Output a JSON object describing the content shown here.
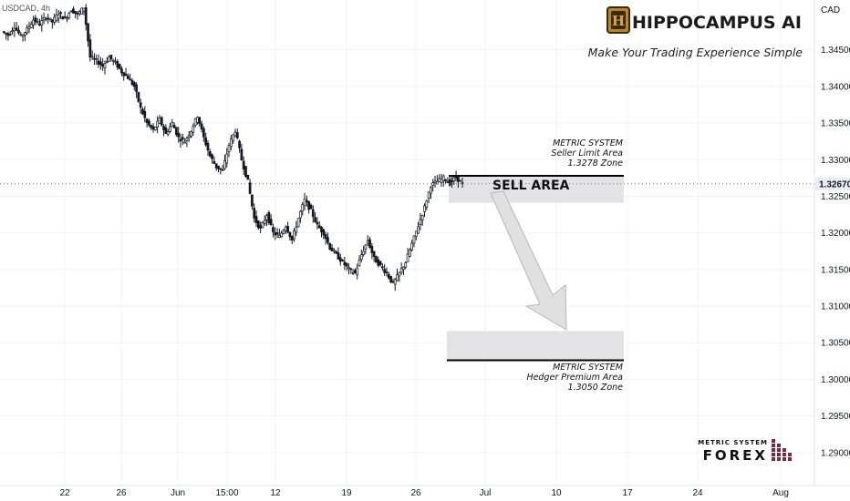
{
  "header": {
    "symbol_text": "USDCAD, 4h",
    "currency": "CAD"
  },
  "brand": {
    "name": "HIPPOCAMPUS AI",
    "logo_letter": "H",
    "tagline": "Make Your Trading Experience Simple"
  },
  "annotations": {
    "seller_lines": [
      "METRIC SYSTEM",
      "Seller Limit Area",
      "1.3278 Zone"
    ],
    "sell_label": "SELL AREA",
    "hedger_lines": [
      "METRIC SYSTEM",
      "Hedger Premium Area",
      "1.3050 Zone"
    ]
  },
  "watermark": {
    "line1": "METRIC SYSTEM",
    "line2": "FOREX"
  },
  "current_price": {
    "label": "1.32670",
    "value": 1.3267
  },
  "colors": {
    "candle": "#131722",
    "zone_fill": "#e3e3e5",
    "zone_line": "#000000",
    "arrow_fill": "#e0e0e0",
    "arrow_stroke": "#b8b8b8",
    "grid": "#f0f3fa",
    "logo_gold": "#b8862b",
    "logo_dark": "#3a2a12",
    "watermark_red": "#7d2a3a"
  },
  "chart_data": {
    "type": "candlestick",
    "symbol": "USDCAD",
    "timeframe": "4h",
    "y_axis": {
      "ticks": [
        "1.34500",
        "1.34000",
        "1.33500",
        "1.33000",
        "1.32500",
        "1.32000",
        "1.31500",
        "1.31000",
        "1.30500",
        "1.30000",
        "1.29500",
        "1.29000"
      ],
      "range": [
        1.2855,
        1.3518
      ]
    },
    "x_axis": {
      "ticks": [
        "22",
        "26",
        "Jun",
        "15:00",
        "12",
        "19",
        "26",
        "Jul",
        "10",
        "17",
        "24",
        "Aug"
      ]
    },
    "zones": [
      {
        "name": "Seller Limit Area",
        "top": 1.3278,
        "bottom": 1.3241
      },
      {
        "name": "Hedger Premium Area",
        "top": 1.3066,
        "bottom": 1.3026
      }
    ],
    "close_path": [
      1.3475,
      1.347,
      1.3482,
      1.3468,
      1.3478,
      1.3491,
      1.3485,
      1.3495,
      1.3488,
      1.35,
      1.3492,
      1.3505,
      1.3498,
      1.3508,
      1.344,
      1.3435,
      1.3428,
      1.344,
      1.3432,
      1.342,
      1.3412,
      1.34,
      1.337,
      1.335,
      1.334,
      1.3355,
      1.3335,
      1.335,
      1.333,
      1.3325,
      1.334,
      1.336,
      1.333,
      1.3305,
      1.329,
      1.3285,
      1.332,
      1.334,
      1.33,
      1.327,
      1.322,
      1.3205,
      1.3225,
      1.32,
      1.3195,
      1.321,
      1.319,
      1.322,
      1.3245,
      1.323,
      1.321,
      1.32,
      1.318,
      1.317,
      1.316,
      1.315,
      1.3145,
      1.317,
      1.319,
      1.3165,
      1.3155,
      1.3145,
      1.313,
      1.3145,
      1.316,
      1.3185,
      1.321,
      1.3235,
      1.3265,
      1.327,
      1.3275,
      1.3268,
      1.3276,
      1.3267
    ]
  }
}
